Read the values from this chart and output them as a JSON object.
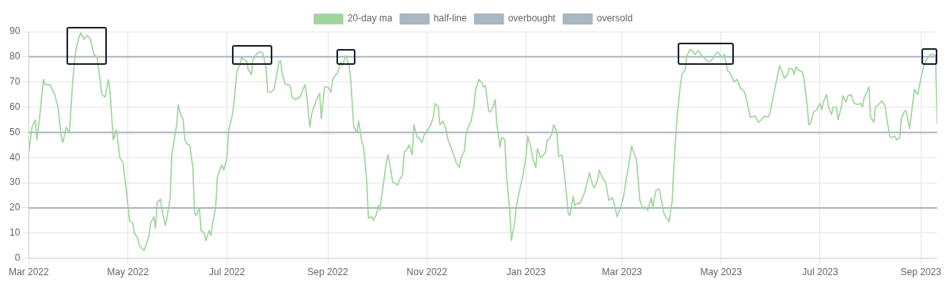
{
  "chart_data": {
    "type": "line",
    "legend": "top",
    "grid": true,
    "marker": "none",
    "line_style": "solid",
    "xlim": [
      "2022-03-01",
      "2023-09-11"
    ],
    "xticks": [
      {
        "value": "2022-03-01",
        "label": "Mar 2022"
      },
      {
        "value": "2022-05-01",
        "label": "May 2022"
      },
      {
        "value": "2022-07-01",
        "label": "Jul 2022"
      },
      {
        "value": "2022-09-01",
        "label": "Sep 2022"
      },
      {
        "value": "2022-11-01",
        "label": "Nov 2022"
      },
      {
        "value": "2023-01-01",
        "label": "Jan 2023"
      },
      {
        "value": "2023-03-01",
        "label": "Mar 2023"
      },
      {
        "value": "2023-05-01",
        "label": "May 2023"
      },
      {
        "value": "2023-07-01",
        "label": "Jul 2023"
      },
      {
        "value": "2023-09-01",
        "label": "Sep 2023"
      }
    ],
    "ylim": [
      0,
      90
    ],
    "yticks": [
      0,
      10,
      20,
      30,
      40,
      50,
      60,
      70,
      80,
      90
    ],
    "series": [
      {
        "name": "half-line",
        "color": "#a9b7c3",
        "x": [
          "2022-03-01",
          "2023-09-11"
        ],
        "values": [
          50,
          50
        ]
      },
      {
        "name": "overbought",
        "color": "#a9b7c3",
        "x": [
          "2022-03-01",
          "2023-09-11"
        ],
        "values": [
          80,
          80
        ]
      },
      {
        "name": "oversold",
        "color": "#a9b7c3",
        "x": [
          "2022-03-01",
          "2023-09-11"
        ],
        "values": [
          20,
          20
        ]
      },
      {
        "name": "20-day ma",
        "color": "#9fd49b",
        "x": [
          "2022-03-01",
          "2022-03-03",
          "2022-03-05",
          "2022-03-06",
          "2022-03-08",
          "2022-03-10",
          "2022-03-11",
          "2022-03-14",
          "2022-03-17",
          "2022-03-19",
          "2022-03-21",
          "2022-03-22",
          "2022-03-24",
          "2022-03-26",
          "2022-03-28",
          "2022-03-30",
          "2022-04-01",
          "2022-04-02",
          "2022-04-04",
          "2022-04-06",
          "2022-04-08",
          "2022-04-10",
          "2022-04-12",
          "2022-04-14",
          "2022-04-15",
          "2022-04-17",
          "2022-04-19",
          "2022-04-20",
          "2022-04-22",
          "2022-04-24",
          "2022-04-26",
          "2022-04-28",
          "2022-04-30",
          "2022-05-02",
          "2022-05-04",
          "2022-05-05",
          "2022-05-07",
          "2022-05-08",
          "2022-05-11",
          "2022-05-12",
          "2022-05-14",
          "2022-05-15",
          "2022-05-17",
          "2022-05-18",
          "2022-05-19",
          "2022-05-21",
          "2022-05-22",
          "2022-05-24",
          "2022-05-25",
          "2022-05-27",
          "2022-05-28",
          "2022-05-30",
          "2022-05-31",
          "2022-06-01",
          "2022-06-02",
          "2022-06-04",
          "2022-06-05",
          "2022-06-07",
          "2022-06-08",
          "2022-06-10",
          "2022-06-11",
          "2022-06-12",
          "2022-06-14",
          "2022-06-15",
          "2022-06-17",
          "2022-06-18",
          "2022-06-20",
          "2022-06-21",
          "2022-06-22",
          "2022-06-24",
          "2022-06-25",
          "2022-06-27",
          "2022-06-28",
          "2022-06-29",
          "2022-07-01",
          "2022-07-02",
          "2022-07-04",
          "2022-07-05",
          "2022-07-07",
          "2022-07-09",
          "2022-07-10",
          "2022-07-11",
          "2022-07-13",
          "2022-07-14",
          "2022-07-16",
          "2022-07-17",
          "2022-07-19",
          "2022-07-21",
          "2022-07-23",
          "2022-07-25",
          "2022-07-26",
          "2022-07-28",
          "2022-07-30",
          "2022-07-31",
          "2022-08-02",
          "2022-08-03",
          "2022-08-04",
          "2022-08-06",
          "2022-08-08",
          "2022-08-09",
          "2022-08-10",
          "2022-08-12",
          "2022-08-15",
          "2022-08-16",
          "2022-08-18",
          "2022-08-19",
          "2022-08-21",
          "2022-08-22",
          "2022-08-25",
          "2022-08-27",
          "2022-08-28",
          "2022-08-30",
          "2022-09-01",
          "2022-09-03",
          "2022-09-04",
          "2022-09-06",
          "2022-09-07",
          "2022-09-09",
          "2022-09-10",
          "2022-09-12",
          "2022-09-14",
          "2022-09-15",
          "2022-09-17",
          "2022-09-19",
          "2022-09-20",
          "2022-09-22",
          "2022-09-23",
          "2022-09-25",
          "2022-09-26",
          "2022-09-28",
          "2022-09-29",
          "2022-10-01",
          "2022-10-02",
          "2022-10-03",
          "2022-10-05",
          "2022-10-07",
          "2022-10-08",
          "2022-10-09",
          "2022-10-11",
          "2022-10-12",
          "2022-10-14",
          "2022-10-15",
          "2022-10-17",
          "2022-10-18",
          "2022-10-20",
          "2022-10-21",
          "2022-10-23",
          "2022-10-24",
          "2022-10-26",
          "2022-10-27",
          "2022-10-29",
          "2022-10-30",
          "2022-11-01",
          "2022-11-03",
          "2022-11-05",
          "2022-11-06",
          "2022-11-08",
          "2022-11-09",
          "2022-11-11",
          "2022-11-13",
          "2022-11-14",
          "2022-11-17",
          "2022-11-19",
          "2022-11-21",
          "2022-11-22",
          "2022-11-24",
          "2022-11-25",
          "2022-11-27",
          "2022-11-28",
          "2022-11-30",
          "2022-12-01",
          "2022-12-03",
          "2022-12-05",
          "2022-12-06",
          "2022-12-07",
          "2022-12-09",
          "2022-12-10",
          "2022-12-12",
          "2022-12-13",
          "2022-12-14",
          "2022-12-16",
          "2022-12-17",
          "2022-12-19",
          "2022-12-20",
          "2022-12-22",
          "2022-12-23",
          "2022-12-25",
          "2022-12-26",
          "2022-12-28",
          "2022-12-30",
          "2023-01-01",
          "2023-01-02",
          "2023-01-04",
          "2023-01-05",
          "2023-01-07",
          "2023-01-08",
          "2023-01-10",
          "2023-01-11",
          "2023-01-13",
          "2023-01-14",
          "2023-01-15",
          "2023-01-17",
          "2023-01-18",
          "2023-01-20",
          "2023-01-21",
          "2023-01-23",
          "2023-01-24",
          "2023-01-26",
          "2023-01-27",
          "2023-01-28",
          "2023-01-30",
          "2023-01-31",
          "2023-02-02",
          "2023-02-03",
          "2023-02-05",
          "2023-02-06",
          "2023-02-08",
          "2023-02-09",
          "2023-02-11",
          "2023-02-12",
          "2023-02-14",
          "2023-02-15",
          "2023-02-17",
          "2023-02-19",
          "2023-02-21",
          "2023-02-23",
          "2023-02-24",
          "2023-02-26",
          "2023-02-27",
          "2023-03-01",
          "2023-03-02",
          "2023-03-05",
          "2023-03-07",
          "2023-03-10",
          "2023-03-12",
          "2023-03-14",
          "2023-03-15",
          "2023-03-17",
          "2023-03-19",
          "2023-03-20",
          "2023-03-22",
          "2023-03-24",
          "2023-03-25",
          "2023-03-27",
          "2023-03-30",
          "2023-04-01",
          "2023-04-02",
          "2023-04-04",
          "2023-04-06",
          "2023-04-07",
          "2023-04-09",
          "2023-04-10",
          "2023-04-12",
          "2023-04-13",
          "2023-04-15",
          "2023-04-17",
          "2023-04-19",
          "2023-04-23",
          "2023-04-25",
          "2023-04-27",
          "2023-04-29",
          "2023-04-30",
          "2023-05-02",
          "2023-05-03",
          "2023-05-05",
          "2023-05-06",
          "2023-05-08",
          "2023-05-09",
          "2023-05-11",
          "2023-05-13",
          "2023-05-15",
          "2023-05-16",
          "2023-05-18",
          "2023-05-19",
          "2023-05-22",
          "2023-05-24",
          "2023-05-25",
          "2023-05-28",
          "2023-05-30",
          "2023-05-31",
          "2023-06-02",
          "2023-06-04",
          "2023-06-06",
          "2023-06-09",
          "2023-06-11",
          "2023-06-12",
          "2023-06-14",
          "2023-06-15",
          "2023-06-16",
          "2023-06-18",
          "2023-06-20",
          "2023-06-21",
          "2023-06-23",
          "2023-06-24",
          "2023-06-25",
          "2023-06-27",
          "2023-06-29",
          "2023-07-01",
          "2023-07-02",
          "2023-07-03",
          "2023-07-05",
          "2023-07-06",
          "2023-07-08",
          "2023-07-09",
          "2023-07-11",
          "2023-07-12",
          "2023-07-14",
          "2023-07-15",
          "2023-07-17",
          "2023-07-18",
          "2023-07-20",
          "2023-07-22",
          "2023-07-24",
          "2023-07-26",
          "2023-07-27",
          "2023-07-28",
          "2023-07-31",
          "2023-08-01",
          "2023-08-03",
          "2023-08-04",
          "2023-08-06",
          "2023-08-08",
          "2023-08-10",
          "2023-08-11",
          "2023-08-13",
          "2023-08-14",
          "2023-08-16",
          "2023-08-17",
          "2023-08-19",
          "2023-08-20",
          "2023-08-22",
          "2023-08-23",
          "2023-08-25",
          "2023-08-26",
          "2023-08-28",
          "2023-08-30",
          "2023-09-01",
          "2023-09-03",
          "2023-09-05",
          "2023-09-07",
          "2023-09-08",
          "2023-09-10",
          "2023-09-11"
        ],
        "values": [
          42,
          52,
          55,
          47,
          58,
          71,
          69,
          69,
          65,
          60,
          48,
          46,
          52,
          50,
          70,
          83,
          88,
          89.5,
          87,
          88.5,
          87,
          81,
          80,
          70,
          65,
          64,
          71,
          66,
          47,
          51,
          40,
          38,
          27,
          15,
          14,
          10,
          8,
          5,
          3,
          5,
          9,
          14,
          16.5,
          12,
          22,
          23.5,
          19,
          13,
          16,
          24,
          41,
          49,
          53,
          61,
          58,
          55,
          47,
          45,
          45,
          36,
          18,
          17,
          20,
          11,
          10,
          7,
          11,
          9,
          13,
          20,
          32,
          36,
          37,
          35,
          40,
          51,
          56,
          60,
          74,
          77,
          80,
          79,
          78.5,
          75,
          73,
          79,
          81,
          82,
          81.5,
          76,
          66,
          66,
          67,
          71,
          78,
          78.5,
          73,
          69,
          69,
          68,
          64,
          63,
          64,
          66,
          69,
          65,
          52,
          57,
          63,
          65.5,
          55.5,
          68,
          68,
          66,
          71,
          73,
          73.5,
          78,
          76.5,
          80.5,
          77,
          72,
          52,
          50,
          54.5,
          46,
          44.5,
          30.5,
          16,
          16.5,
          15,
          17.5,
          21,
          19,
          28.5,
          38,
          41,
          38,
          30,
          30,
          29,
          31,
          33,
          42,
          43.5,
          45,
          41,
          53,
          48,
          48,
          46,
          48.5,
          50.5,
          52.5,
          56,
          61.5,
          60,
          53,
          54.5,
          50.5,
          47,
          42,
          38,
          36,
          40,
          42.5,
          49,
          53,
          54,
          60.5,
          67,
          71,
          69.5,
          68,
          68.5,
          58.5,
          58,
          60.5,
          63,
          53.5,
          44,
          48,
          47,
          32.5,
          19,
          7,
          14,
          20.5,
          27,
          32.5,
          40.5,
          48.5,
          44,
          40,
          36,
          43.5,
          40,
          40.5,
          42,
          47,
          47,
          49.5,
          53,
          50,
          40.5,
          41,
          37,
          25,
          17.5,
          17,
          24.5,
          21,
          22,
          21.5,
          24.5,
          26,
          31,
          34,
          29,
          28,
          31,
          35,
          32,
          30,
          23,
          24,
          22.5,
          16.5,
          18,
          22,
          24.5,
          36.5,
          44.5,
          39,
          23,
          19.5,
          20.5,
          19,
          24,
          20.5,
          27,
          27.5,
          24,
          17.5,
          14.5,
          23,
          37,
          56.5,
          69,
          73,
          75,
          80.5,
          83,
          82.5,
          81,
          82.5,
          80.5,
          78,
          78.5,
          80.5,
          82,
          81,
          79.5,
          81,
          74.5,
          74,
          71.5,
          70,
          71,
          67.5,
          66.5,
          65,
          59,
          56,
          56.5,
          54,
          54.5,
          56.5,
          56,
          57.5,
          64,
          70,
          76.5,
          71.5,
          73,
          75.5,
          75,
          73,
          76,
          74.5,
          74,
          71.5,
          61,
          53,
          53.5,
          58,
          59,
          61.5,
          59,
          62,
          65,
          60.5,
          57,
          60,
          60,
          55,
          60,
          64.5,
          62,
          64.5,
          65,
          61.5,
          61,
          61.5,
          60,
          63.5,
          68,
          56,
          54,
          60,
          61,
          62.5,
          60.5,
          55.5,
          48,
          48,
          48.5,
          47,
          48,
          55.5,
          58.5,
          58.5,
          51.5,
          56.5,
          67,
          65,
          71.5,
          77,
          79.5,
          81,
          81,
          80.5,
          53.5
        ]
      }
    ]
  }
}
